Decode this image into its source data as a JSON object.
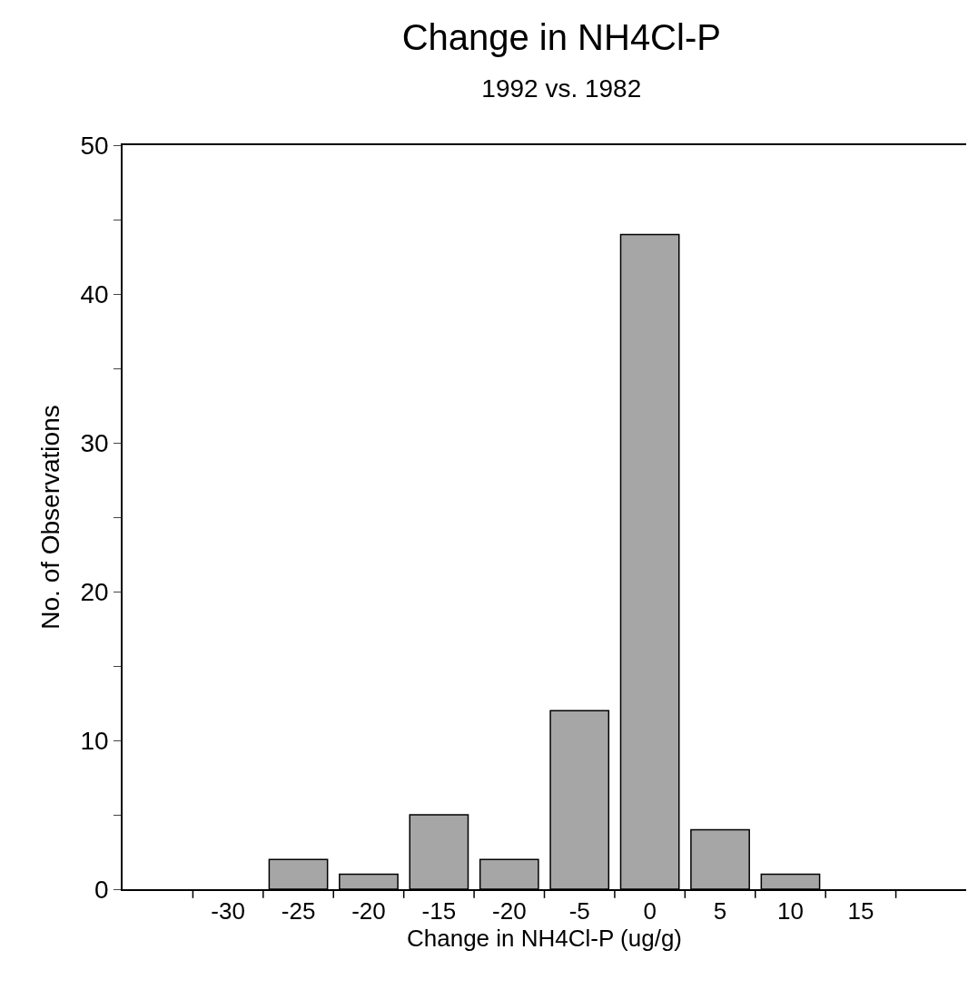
{
  "chart_data": {
    "type": "bar",
    "title": "Change in NH4Cl-P",
    "subtitle": "1992 vs. 1982",
    "xlabel": "Change in NH4Cl-P (ug/g)",
    "ylabel": "No. of Observations",
    "categories": [
      null,
      "-30",
      "-25",
      "-20",
      "-15",
      "-20",
      "-5",
      "0",
      "5",
      "10",
      "15",
      null
    ],
    "values": [
      null,
      null,
      2,
      1,
      5,
      2,
      12,
      44,
      4,
      1,
      null,
      null
    ],
    "color": "#a6a6a6",
    "ylim": [
      0,
      50
    ],
    "yticks": [
      0,
      {
        "value": 5,
        "label": null
      },
      10,
      {
        "value": 15,
        "label": null
      },
      20,
      {
        "value": 25,
        "label": null
      },
      30,
      {
        "value": 35,
        "label": null
      },
      40,
      {
        "value": 45,
        "label": null
      },
      50
    ]
  }
}
